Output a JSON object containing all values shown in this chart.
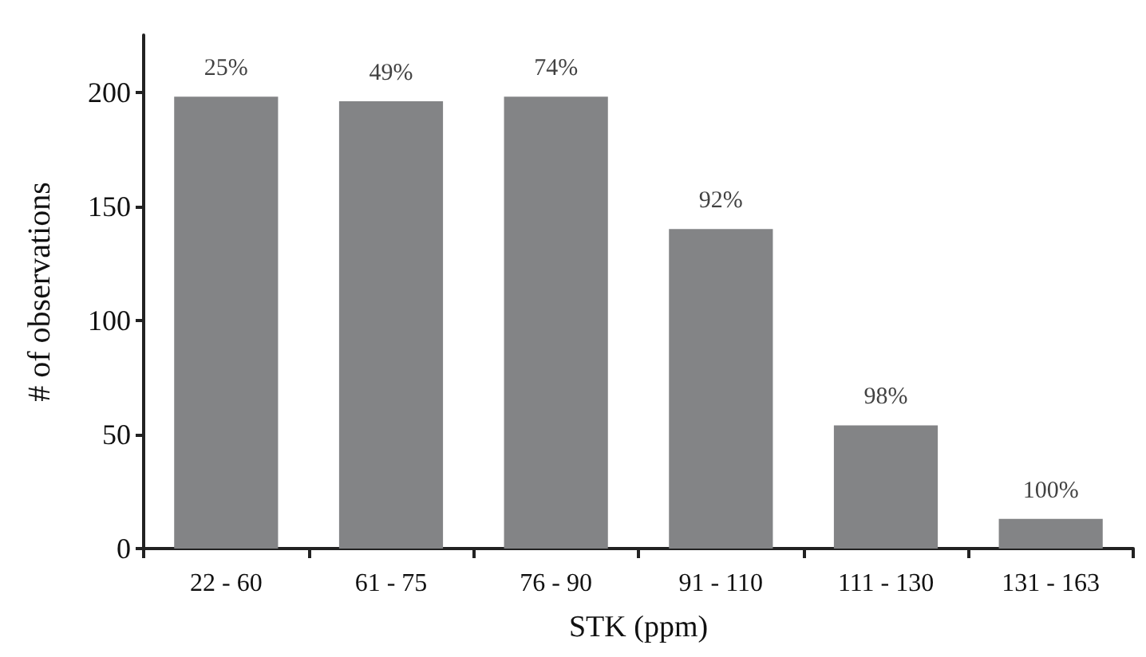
{
  "chart_data": {
    "type": "bar",
    "xlabel": "STK (ppm)",
    "ylabel": "# of observations",
    "categories": [
      "22 - 60",
      "61 - 75",
      "76 - 90",
      "91 - 110",
      "111 - 130",
      "131 - 163"
    ],
    "values": [
      198,
      196,
      198,
      140,
      54,
      13
    ],
    "annotations": [
      {
        "text": "25%",
        "x": "22 - 60",
        "y": 198
      },
      {
        "text": "49%",
        "x": "61 - 75",
        "y": 196
      },
      {
        "text": "74%",
        "x": "76 - 90",
        "y": 198
      },
      {
        "text": "92%",
        "x": "91 - 110",
        "y": 140
      },
      {
        "text": "98%",
        "x": "111 - 130",
        "y": 54
      },
      {
        "text": "100%",
        "x": "131 - 163",
        "y": 13
      }
    ],
    "color": "#838486",
    "ylim": [
      0,
      225
    ],
    "yticks": [
      0,
      50,
      100,
      150,
      200
    ],
    "grid": false
  }
}
